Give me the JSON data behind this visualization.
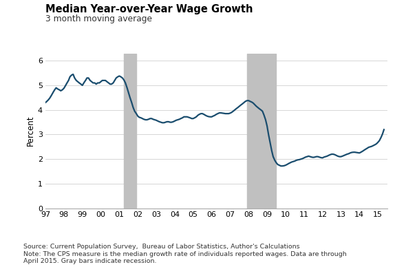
{
  "title": "Median Year-over-Year Wage Growth",
  "subtitle": "3 month moving average",
  "ylabel": "Percent",
  "source_note": "Source: Current Population Survey,  Bureau of Labor Statistics, Author's Calculations\nNote: The CPS measure is the median growth rate of individuals reported wages. Data are through\nApril 2015. Gray bars indicate recession.",
  "line_color": "#1a4d6e",
  "line_width": 1.6,
  "recession_color": "#c0c0c0",
  "recessions": [
    {
      "start": 2001.25,
      "end": 2001.92
    },
    {
      "start": 2007.92,
      "end": 2009.5
    }
  ],
  "xlim": [
    1997.0,
    2015.5
  ],
  "ylim": [
    0,
    6.3
  ],
  "yticks": [
    0,
    1,
    2,
    3,
    4,
    5,
    6
  ],
  "xtick_labels": [
    "97",
    "98",
    "99",
    "00",
    "01",
    "02",
    "03",
    "04",
    "05",
    "06",
    "07",
    "08",
    "09",
    "10",
    "11",
    "12",
    "13",
    "14",
    "15"
  ],
  "xtick_values": [
    1997,
    1998,
    1999,
    2000,
    2001,
    2002,
    2003,
    2004,
    2005,
    2006,
    2007,
    2008,
    2009,
    2010,
    2011,
    2012,
    2013,
    2014,
    2015
  ],
  "data_x": [
    1997.0,
    1997.08,
    1997.17,
    1997.25,
    1997.33,
    1997.42,
    1997.5,
    1997.58,
    1997.67,
    1997.75,
    1997.83,
    1997.92,
    1998.0,
    1998.08,
    1998.17,
    1998.25,
    1998.33,
    1998.42,
    1998.5,
    1998.58,
    1998.67,
    1998.75,
    1998.83,
    1998.92,
    1999.0,
    1999.08,
    1999.17,
    1999.25,
    1999.33,
    1999.42,
    1999.5,
    1999.58,
    1999.67,
    1999.75,
    1999.83,
    1999.92,
    2000.0,
    2000.08,
    2000.17,
    2000.25,
    2000.33,
    2000.42,
    2000.5,
    2000.58,
    2000.67,
    2000.75,
    2000.83,
    2000.92,
    2001.0,
    2001.08,
    2001.17,
    2001.25,
    2001.33,
    2001.42,
    2001.5,
    2001.58,
    2001.67,
    2001.75,
    2001.83,
    2001.92,
    2002.0,
    2002.08,
    2002.17,
    2002.25,
    2002.33,
    2002.42,
    2002.5,
    2002.58,
    2002.67,
    2002.75,
    2002.83,
    2002.92,
    2003.0,
    2003.08,
    2003.17,
    2003.25,
    2003.33,
    2003.42,
    2003.5,
    2003.58,
    2003.67,
    2003.75,
    2003.83,
    2003.92,
    2004.0,
    2004.08,
    2004.17,
    2004.25,
    2004.33,
    2004.42,
    2004.5,
    2004.58,
    2004.67,
    2004.75,
    2004.83,
    2004.92,
    2005.0,
    2005.08,
    2005.17,
    2005.25,
    2005.33,
    2005.42,
    2005.5,
    2005.58,
    2005.67,
    2005.75,
    2005.83,
    2005.92,
    2006.0,
    2006.08,
    2006.17,
    2006.25,
    2006.33,
    2006.42,
    2006.5,
    2006.58,
    2006.67,
    2006.75,
    2006.83,
    2006.92,
    2007.0,
    2007.08,
    2007.17,
    2007.25,
    2007.33,
    2007.42,
    2007.5,
    2007.58,
    2007.67,
    2007.75,
    2007.83,
    2007.92,
    2008.0,
    2008.08,
    2008.17,
    2008.25,
    2008.33,
    2008.42,
    2008.5,
    2008.58,
    2008.67,
    2008.75,
    2008.83,
    2008.92,
    2009.0,
    2009.08,
    2009.17,
    2009.25,
    2009.33,
    2009.42,
    2009.5,
    2009.58,
    2009.67,
    2009.75,
    2009.83,
    2009.92,
    2010.0,
    2010.08,
    2010.17,
    2010.25,
    2010.33,
    2010.42,
    2010.5,
    2010.58,
    2010.67,
    2010.75,
    2010.83,
    2010.92,
    2011.0,
    2011.08,
    2011.17,
    2011.25,
    2011.33,
    2011.42,
    2011.5,
    2011.58,
    2011.67,
    2011.75,
    2011.83,
    2011.92,
    2012.0,
    2012.08,
    2012.17,
    2012.25,
    2012.33,
    2012.42,
    2012.5,
    2012.58,
    2012.67,
    2012.75,
    2012.83,
    2012.92,
    2013.0,
    2013.08,
    2013.17,
    2013.25,
    2013.33,
    2013.42,
    2013.5,
    2013.58,
    2013.67,
    2013.75,
    2013.83,
    2013.92,
    2014.0,
    2014.08,
    2014.17,
    2014.25,
    2014.33,
    2014.42,
    2014.5,
    2014.58,
    2014.67,
    2014.75,
    2014.83,
    2014.92,
    2015.0,
    2015.08,
    2015.17,
    2015.25,
    2015.33
  ],
  "data_y": [
    4.3,
    4.35,
    4.42,
    4.5,
    4.6,
    4.72,
    4.82,
    4.9,
    4.85,
    4.82,
    4.78,
    4.82,
    4.88,
    4.98,
    5.1,
    5.2,
    5.35,
    5.42,
    5.45,
    5.3,
    5.2,
    5.15,
    5.1,
    5.05,
    5.0,
    5.1,
    5.2,
    5.3,
    5.3,
    5.2,
    5.15,
    5.1,
    5.1,
    5.05,
    5.1,
    5.1,
    5.15,
    5.2,
    5.2,
    5.2,
    5.15,
    5.1,
    5.05,
    5.05,
    5.1,
    5.2,
    5.3,
    5.35,
    5.38,
    5.35,
    5.3,
    5.22,
    5.1,
    4.9,
    4.7,
    4.5,
    4.3,
    4.1,
    3.95,
    3.85,
    3.75,
    3.7,
    3.68,
    3.65,
    3.62,
    3.6,
    3.6,
    3.62,
    3.65,
    3.65,
    3.62,
    3.6,
    3.58,
    3.55,
    3.52,
    3.5,
    3.48,
    3.48,
    3.5,
    3.52,
    3.52,
    3.5,
    3.5,
    3.52,
    3.55,
    3.58,
    3.6,
    3.62,
    3.65,
    3.68,
    3.72,
    3.72,
    3.72,
    3.7,
    3.68,
    3.65,
    3.65,
    3.68,
    3.72,
    3.78,
    3.82,
    3.85,
    3.85,
    3.82,
    3.78,
    3.75,
    3.73,
    3.72,
    3.72,
    3.75,
    3.78,
    3.82,
    3.85,
    3.88,
    3.88,
    3.87,
    3.86,
    3.85,
    3.85,
    3.85,
    3.87,
    3.9,
    3.95,
    4.0,
    4.05,
    4.1,
    4.15,
    4.2,
    4.25,
    4.3,
    4.35,
    4.38,
    4.38,
    4.35,
    4.32,
    4.28,
    4.22,
    4.15,
    4.1,
    4.05,
    4.0,
    3.95,
    3.8,
    3.6,
    3.35,
    3.0,
    2.65,
    2.35,
    2.1,
    1.95,
    1.85,
    1.78,
    1.75,
    1.72,
    1.72,
    1.73,
    1.75,
    1.78,
    1.82,
    1.85,
    1.88,
    1.9,
    1.92,
    1.95,
    1.97,
    1.98,
    2.0,
    2.02,
    2.05,
    2.08,
    2.1,
    2.12,
    2.1,
    2.08,
    2.07,
    2.08,
    2.1,
    2.1,
    2.08,
    2.06,
    2.05,
    2.08,
    2.1,
    2.12,
    2.15,
    2.18,
    2.2,
    2.2,
    2.18,
    2.15,
    2.12,
    2.1,
    2.1,
    2.12,
    2.15,
    2.18,
    2.2,
    2.22,
    2.25,
    2.27,
    2.28,
    2.28,
    2.27,
    2.26,
    2.25,
    2.28,
    2.32,
    2.36,
    2.4,
    2.44,
    2.48,
    2.5,
    2.52,
    2.55,
    2.58,
    2.62,
    2.68,
    2.75,
    2.88,
    3.02,
    3.2
  ]
}
